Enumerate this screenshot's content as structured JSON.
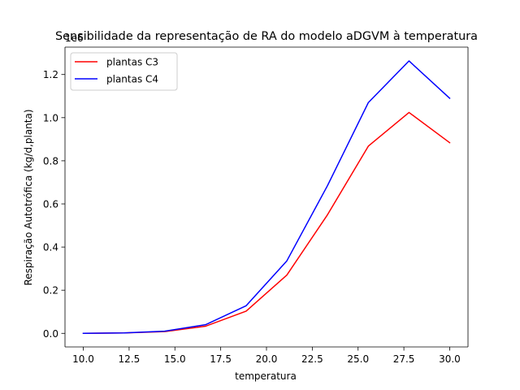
{
  "chart_data": {
    "type": "line",
    "title": "Sensibilidade da representação de RA do modelo aDGVM à temperatura",
    "xlabel": "temperatura",
    "ylabel": "Respiração Autotrófica (kg/d,planta)",
    "offset_text": "1e6",
    "xlim": [
      9.0,
      31.0
    ],
    "ylim": [
      -0.063,
      1.327
    ],
    "x_ticks": [
      10.0,
      12.5,
      15.0,
      17.5,
      20.0,
      22.5,
      25.0,
      27.5,
      30.0
    ],
    "x_tick_labels": [
      "10.0",
      "12.5",
      "15.0",
      "17.5",
      "20.0",
      "22.5",
      "25.0",
      "27.5",
      "30.0"
    ],
    "y_ticks": [
      0.0,
      0.2,
      0.4,
      0.6,
      0.8,
      1.0,
      1.2
    ],
    "y_tick_labels": [
      "0.0",
      "0.2",
      "0.4",
      "0.6",
      "0.8",
      "1.0",
      "1.2"
    ],
    "x": [
      10.0,
      12.22,
      14.44,
      16.67,
      18.89,
      21.11,
      23.33,
      25.56,
      27.78,
      30.0
    ],
    "series": [
      {
        "name": "plantas C3",
        "color": "#ff0000",
        "values": [
          0.0,
          0.002,
          0.008,
          0.033,
          0.103,
          0.27,
          0.55,
          0.868,
          1.024,
          0.884
        ]
      },
      {
        "name": "plantas C4",
        "color": "#0000ff",
        "values": [
          0.0,
          0.002,
          0.01,
          0.04,
          0.128,
          0.336,
          0.685,
          1.07,
          1.263,
          1.09
        ]
      }
    ],
    "legend_position": "upper-left",
    "grid": false
  }
}
